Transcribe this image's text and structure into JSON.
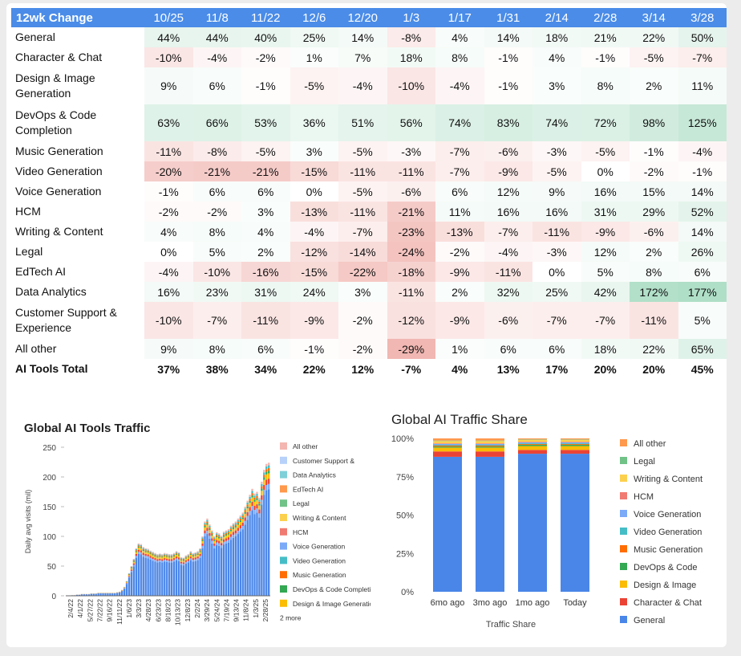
{
  "table": {
    "title": "12wk Change",
    "columns": [
      "10/25",
      "11/8",
      "11/22",
      "12/6",
      "12/20",
      "1/3",
      "1/17",
      "1/31",
      "2/14",
      "2/28",
      "3/14",
      "3/28"
    ],
    "rows": [
      {
        "label": "General",
        "values": [
          "44%",
          "44%",
          "40%",
          "25%",
          "14%",
          "-8%",
          "4%",
          "14%",
          "18%",
          "21%",
          "22%",
          "50%"
        ]
      },
      {
        "label": "Character & Chat",
        "values": [
          "-10%",
          "-4%",
          "-2%",
          "1%",
          "7%",
          "18%",
          "8%",
          "-1%",
          "4%",
          "-1%",
          "-5%",
          "-7%"
        ]
      },
      {
        "label": "Design & Image Generation",
        "values": [
          "9%",
          "6%",
          "-1%",
          "-5%",
          "-4%",
          "-10%",
          "-4%",
          "-1%",
          "3%",
          "8%",
          "2%",
          "11%"
        ]
      },
      {
        "label": "DevOps & Code Completion",
        "values": [
          "63%",
          "66%",
          "53%",
          "36%",
          "51%",
          "56%",
          "74%",
          "83%",
          "74%",
          "72%",
          "98%",
          "125%"
        ]
      },
      {
        "label": "Music Generation",
        "values": [
          "-11%",
          "-8%",
          "-5%",
          "3%",
          "-5%",
          "-3%",
          "-7%",
          "-6%",
          "-3%",
          "-5%",
          "-1%",
          "-4%"
        ]
      },
      {
        "label": "Video Generation",
        "values": [
          "-20%",
          "-21%",
          "-21%",
          "-15%",
          "-11%",
          "-11%",
          "-7%",
          "-9%",
          "-5%",
          "0%",
          "-2%",
          "-1%"
        ]
      },
      {
        "label": "Voice Generation",
        "values": [
          "-1%",
          "6%",
          "6%",
          "0%",
          "-5%",
          "-6%",
          "6%",
          "12%",
          "9%",
          "16%",
          "15%",
          "14%"
        ]
      },
      {
        "label": "HCM",
        "values": [
          "-2%",
          "-2%",
          "3%",
          "-13%",
          "-11%",
          "-21%",
          "11%",
          "16%",
          "16%",
          "31%",
          "29%",
          "52%"
        ]
      },
      {
        "label": "Writing & Content",
        "values": [
          "4%",
          "8%",
          "4%",
          "-4%",
          "-7%",
          "-23%",
          "-13%",
          "-7%",
          "-11%",
          "-9%",
          "-6%",
          "14%"
        ]
      },
      {
        "label": "Legal",
        "values": [
          "0%",
          "5%",
          "2%",
          "-12%",
          "-14%",
          "-24%",
          "-2%",
          "-4%",
          "-3%",
          "12%",
          "2%",
          "26%"
        ]
      },
      {
        "label": "EdTech AI",
        "values": [
          "-4%",
          "-10%",
          "-16%",
          "-15%",
          "-22%",
          "-18%",
          "-9%",
          "-11%",
          "0%",
          "5%",
          "8%",
          "6%"
        ]
      },
      {
        "label": "Data Analytics",
        "values": [
          "16%",
          "23%",
          "31%",
          "24%",
          "3%",
          "-11%",
          "2%",
          "32%",
          "25%",
          "42%",
          "172%",
          "177%"
        ]
      },
      {
        "label": "Customer Support & Experience",
        "values": [
          "-10%",
          "-7%",
          "-11%",
          "-9%",
          "-2%",
          "-12%",
          "-9%",
          "-6%",
          "-7%",
          "-7%",
          "-11%",
          "5%"
        ]
      },
      {
        "label": "All other",
        "values": [
          "9%",
          "8%",
          "6%",
          "-1%",
          "-2%",
          "-29%",
          "1%",
          "6%",
          "6%",
          "18%",
          "22%",
          "65%"
        ]
      },
      {
        "label": "AI Tools Total",
        "values": [
          "37%",
          "38%",
          "34%",
          "22%",
          "12%",
          "-7%",
          "4%",
          "13%",
          "17%",
          "20%",
          "20%",
          "45%"
        ],
        "bold": true
      }
    ]
  },
  "chart_data": [
    {
      "type": "bar",
      "stacked": true,
      "title": "Global AI Tools Traffic",
      "ylabel": "Daily avg visits (mil)",
      "ylim": [
        0,
        250
      ],
      "yticks": [
        0,
        50,
        100,
        150,
        200,
        250
      ],
      "xticks": [
        "2/4/22",
        "4/1/22",
        "5/27/22",
        "7/22/22",
        "9/16/22",
        "11/11/22",
        "1/6/23",
        "3/3/23",
        "4/28/23",
        "6/23/23",
        "8/18/23",
        "10/13/23",
        "12/8/23",
        "2/2/24",
        "3/29/24",
        "5/24/24",
        "7/19/24",
        "9/13/24",
        "11/8/24",
        "1/3/25",
        "2/28/25"
      ],
      "legend": [
        "All other",
        "Customer Support &",
        "Data Analytics",
        "EdTech AI",
        "Legal",
        "Writing & Content",
        "HCM",
        "Voice Generation",
        "Video Generation",
        "Music Generation",
        "DevOps & Code Completion",
        "Design & Image Generation"
      ],
      "legend_more": "2 more",
      "legend_position": "right",
      "total_values": [
        0,
        1,
        1,
        2,
        2,
        3,
        3,
        3,
        3,
        4,
        4,
        4,
        5,
        5,
        5,
        5,
        5,
        5,
        5,
        5,
        6,
        7,
        10,
        15,
        25,
        38,
        50,
        62,
        80,
        88,
        87,
        82,
        80,
        79,
        76,
        74,
        72,
        70,
        71,
        70,
        72,
        71,
        70,
        70,
        72,
        75,
        73,
        65,
        64,
        68,
        70,
        75,
        72,
        73,
        75,
        80,
        100,
        125,
        130,
        120,
        110,
        100,
        107,
        105,
        101,
        108,
        110,
        112,
        118,
        122,
        125,
        130,
        135,
        140,
        150,
        160,
        170,
        180,
        172,
        175,
        165,
        192,
        212,
        222,
        224
      ]
    },
    {
      "type": "bar",
      "stacked": true,
      "percent": true,
      "title": "Global AI Traffic Share",
      "xlabel": "Traffic Share",
      "categories": [
        "6mo ago",
        "3mo ago",
        "1mo ago",
        "Today"
      ],
      "yticks": [
        "0%",
        "25%",
        "50%",
        "75%",
        "100%"
      ],
      "legend_position": "right",
      "series": [
        {
          "name": "General",
          "color": "#4a86e8",
          "values": [
            88,
            88,
            90,
            90
          ]
        },
        {
          "name": "Character & Chat",
          "color": "#ea4335",
          "values": [
            3.5,
            3.5,
            2.5,
            2.5
          ]
        },
        {
          "name": "Design & Image",
          "color": "#fbbc04",
          "values": [
            2.5,
            2.5,
            2.5,
            2.5
          ]
        },
        {
          "name": "DevOps & Code",
          "color": "#34a853",
          "values": [
            0.7,
            0.7,
            0.8,
            0.8
          ]
        },
        {
          "name": "Music Generation",
          "color": "#ff6d01",
          "values": [
            0.6,
            0.6,
            0.5,
            0.5
          ]
        },
        {
          "name": "Video Generation",
          "color": "#46bdc6",
          "values": [
            0.5,
            0.5,
            0.5,
            0.5
          ]
        },
        {
          "name": "Voice Generation",
          "color": "#7baaf7",
          "values": [
            0.6,
            0.6,
            0.6,
            0.6
          ]
        },
        {
          "name": "HCM",
          "color": "#f07b72",
          "values": [
            0.4,
            0.4,
            0.4,
            0.4
          ]
        },
        {
          "name": "Writing & Content",
          "color": "#fcd04f",
          "values": [
            1.5,
            1.5,
            1.2,
            1.2
          ]
        },
        {
          "name": "Legal",
          "color": "#71c287",
          "values": [
            0.3,
            0.3,
            0.3,
            0.3
          ]
        },
        {
          "name": "All other",
          "color": "#ff994d",
          "values": [
            1.4,
            1.4,
            0.7,
            0.7
          ]
        }
      ],
      "legend": [
        "All other",
        "Legal",
        "Writing & Content",
        "HCM",
        "Voice Generation",
        "Video Generation",
        "Music Generation",
        "DevOps & Code",
        "Design & Image",
        "Character & Chat",
        "General"
      ]
    }
  ],
  "colors": {
    "header": "#4a8ce8",
    "header_text": "#ffffff",
    "negative": "#e67c73",
    "positive": "#57bb8a",
    "legend_swatches": {
      "All other": "#f4b6b0",
      "Customer Support &": "#b7d1fa",
      "Data Analytics": "#7fd0d8",
      "EdTech AI": "#ff994d",
      "Legal": "#71c287",
      "Writing & Content": "#fcd04f",
      "HCM": "#f07b72",
      "Voice Generation": "#7baaf7",
      "Video Generation": "#46bdc6",
      "Music Generation": "#ff6d01",
      "DevOps & Code Completion": "#34a853",
      "Design & Image Generation": "#fbbc04"
    }
  }
}
